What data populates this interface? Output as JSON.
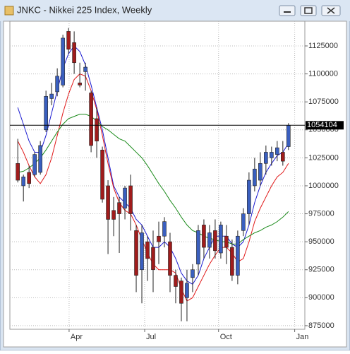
{
  "chart_data": {
    "type": "candlestick",
    "title": "JNKC - Nikkei 225 Index, Weekly",
    "up_color": "#3a5fbf",
    "down_color": "#a01c1c",
    "open": [
      1020000,
      1000000,
      1012000,
      1010000,
      1012000,
      1050000,
      1078000,
      1084000,
      1090000,
      1138000,
      1128000,
      1092000,
      1102000,
      1083000,
      1060000,
      1032000,
      1000000,
      978000,
      985000,
      980000,
      1000000,
      960000,
      925000,
      950000,
      945000,
      955000,
      955000,
      950000,
      920000,
      915000,
      900000,
      918000,
      930000,
      965000,
      945000,
      960000,
      940000,
      955000,
      945000,
      920000,
      960000,
      975000,
      1000000,
      1005000,
      1020000,
      1025000,
      1028000,
      1030000,
      1035000
    ],
    "high": [
      1042000,
      1010000,
      1018000,
      1030000,
      1040000,
      1085000,
      1092000,
      1105000,
      1135000,
      1141000,
      1138000,
      1110000,
      1110000,
      1085000,
      1070000,
      1035000,
      1005000,
      990000,
      990000,
      1000000,
      1010000,
      965000,
      965000,
      955000,
      960000,
      968000,
      972000,
      958000,
      925000,
      918000,
      925000,
      930000,
      965000,
      970000,
      965000,
      970000,
      968000,
      965000,
      952000,
      960000,
      980000,
      1012000,
      1025000,
      1030000,
      1036000,
      1035000,
      1040000,
      1040000,
      1056000
    ],
    "low": [
      1003000,
      986000,
      998000,
      1008000,
      1010000,
      1048000,
      1072000,
      1080000,
      1088000,
      1118000,
      1100000,
      1088000,
      1085000,
      1030000,
      1025000,
      985000,
      939000,
      955000,
      940000,
      970000,
      960000,
      905000,
      895000,
      915000,
      905000,
      930000,
      945000,
      905000,
      895000,
      879000,
      879000,
      905000,
      920000,
      935000,
      935000,
      935000,
      935000,
      930000,
      915000,
      912000,
      955000,
      965000,
      995000,
      1000000,
      1010000,
      1018000,
      1022000,
      1018000,
      1032000
    ],
    "close": [
      1005000,
      1008000,
      1002000,
      1028000,
      1036000,
      1080000,
      1082000,
      1098000,
      1132000,
      1122000,
      1110000,
      1090000,
      1106000,
      1036000,
      1040000,
      988000,
      970000,
      970000,
      975000,
      998000,
      975000,
      920000,
      958000,
      935000,
      925000,
      950000,
      968000,
      920000,
      910000,
      895000,
      913000,
      925000,
      960000,
      945000,
      958000,
      942000,
      965000,
      945000,
      920000,
      955000,
      975000,
      1005000,
      1015000,
      1020000,
      1030000,
      1030000,
      1034000,
      1022000,
      1054104
    ],
    "moving_averages": [
      {
        "color": "#1a1ad0",
        "values": [
          1070000,
          1055000,
          1040000,
          1030000,
          1030000,
          1045000,
          1065000,
          1085000,
          1105000,
          1118000,
          1125000,
          1120000,
          1108000,
          1090000,
          1070000,
          1050000,
          1025000,
          1000000,
          990000,
          985000,
          980000,
          970000,
          965000,
          955000,
          945000,
          945000,
          950000,
          945000,
          935000,
          922000,
          915000,
          912000,
          920000,
          935000,
          945000,
          955000,
          955000,
          955000,
          948000,
          945000,
          950000,
          965000,
          985000,
          1000000,
          1012000,
          1020000,
          1027000,
          1030000,
          1038000
        ]
      },
      {
        "color": "#e01818",
        "values": [
          1040000,
          1030000,
          1018000,
          1008000,
          1002000,
          1010000,
          1025000,
          1045000,
          1065000,
          1082000,
          1095000,
          1100000,
          1098000,
          1085000,
          1068000,
          1045000,
          1020000,
          998000,
          985000,
          978000,
          975000,
          965000,
          952000,
          940000,
          930000,
          925000,
          925000,
          925000,
          922000,
          908000,
          897000,
          900000,
          910000,
          920000,
          930000,
          938000,
          945000,
          945000,
          940000,
          932000,
          935000,
          950000,
          968000,
          980000,
          990000,
          1000000,
          1008000,
          1012000,
          1020000
        ]
      },
      {
        "color": "#1a8a1a",
        "values": [
          1012000,
          1013000,
          1016000,
          1020000,
          1025000,
          1032000,
          1040000,
          1048000,
          1055000,
          1060000,
          1062000,
          1064000,
          1064000,
          1062000,
          1058000,
          1053000,
          1050000,
          1046000,
          1042000,
          1040000,
          1035000,
          1030000,
          1025000,
          1018000,
          1010000,
          1002000,
          995000,
          987000,
          980000,
          972000,
          965000,
          960000,
          958000,
          955000,
          953000,
          952000,
          950000,
          950000,
          948000,
          948000,
          952000,
          955000,
          958000,
          960000,
          963000,
          965000,
          968000,
          972000,
          977000
        ]
      }
    ],
    "last_price": 1054104,
    "xlim": [
      -1.4,
      50.9
    ],
    "xticks": [
      {
        "value": 9.1,
        "label": "Apr"
      },
      {
        "value": 22.5,
        "label": "Jul"
      },
      {
        "value": 35.6,
        "label": "Oct"
      },
      {
        "value": 49.1,
        "label": "Jan"
      }
    ],
    "ylim": [
      871800,
      1147100
    ],
    "yticks": [
      875000,
      900000,
      925000,
      950000,
      975000,
      1000000,
      1025000,
      1050000,
      1075000,
      1100000,
      1125000
    ],
    "grid": true
  }
}
